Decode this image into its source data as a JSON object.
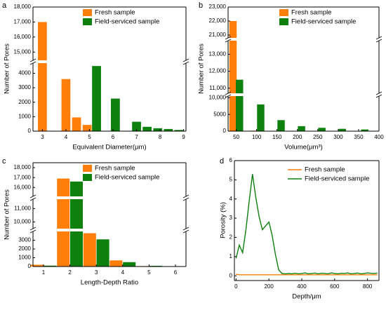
{
  "chart_data": [
    {
      "type": "bar",
      "panel": "a",
      "xlabel": "Equivalent Diameter(μm)",
      "ylabel": "Number of Pores",
      "xlim": [
        2.6,
        9.1
      ],
      "xticks": [
        3,
        4,
        5,
        6,
        7,
        8,
        9
      ],
      "ysegments": [
        [
          0,
          4700
        ],
        [
          14450,
          18000
        ]
      ],
      "yticks": [
        0,
        1000,
        2000,
        3000,
        4000,
        {
          "value": 15000,
          "label": "15,000"
        },
        {
          "value": 16000,
          "label": "16,000"
        },
        {
          "value": 17000,
          "label": "17,000"
        },
        {
          "value": 18000,
          "label": "18,000"
        }
      ],
      "legend": "upper right",
      "series": [
        {
          "name": "Fresh sample",
          "color": "#ff7f0a",
          "x": [
            3,
            4,
            4.45,
            4.9
          ],
          "values": [
            17000,
            3600,
            950,
            430
          ]
        },
        {
          "name": "Field-serviced sample",
          "color": "#0e800e",
          "x": [
            5.3,
            6.1,
            7,
            7.45,
            7.9,
            8.35,
            8.8
          ],
          "values": [
            4500,
            2250,
            650,
            300,
            200,
            150,
            80
          ]
        }
      ]
    },
    {
      "type": "bar",
      "panel": "b",
      "xlabel": "Volume(μm³)",
      "ylabel": "Number of Pores",
      "xlim": [
        30,
        400
      ],
      "xticks": [
        50,
        100,
        150,
        200,
        250,
        300,
        350,
        400
      ],
      "ysegments": [
        [
          0,
          10500
        ],
        [
          10700,
          13800
        ],
        [
          20800,
          23000
        ]
      ],
      "yticks": [
        0,
        5000,
        {
          "value": 10000,
          "label": "10,000"
        },
        {
          "value": 11000,
          "label": "11,000"
        },
        {
          "value": 12000,
          "label": "12,000"
        },
        {
          "value": 13000,
          "label": "13,000"
        },
        {
          "value": 21000,
          "label": "21,000"
        },
        {
          "value": 22000,
          "label": "22,000"
        },
        {
          "value": 23000,
          "label": "23,000"
        }
      ],
      "legend": "upper right",
      "series": [
        {
          "name": "Fresh sample",
          "color": "#ff7f0a",
          "x": [
            42,
            95
          ],
          "values": [
            22000,
            150
          ]
        },
        {
          "name": "Field-serviced sample",
          "color": "#0e800e",
          "x": [
            58,
            110,
            160,
            210,
            260,
            310,
            365
          ],
          "values": [
            11500,
            8000,
            3300,
            1500,
            1000,
            700,
            500
          ]
        }
      ]
    },
    {
      "type": "bar",
      "panel": "c",
      "xlabel": "Length-Depth Ratio",
      "ylabel": "Number of Pores",
      "xlim": [
        0.6,
        6.4
      ],
      "xticks": [
        1,
        2,
        3,
        4,
        5,
        6
      ],
      "ysegments": [
        [
          0,
          4000
        ],
        [
          9500,
          11700
        ],
        [
          15100,
          18500
        ]
      ],
      "yticks": [
        0,
        1000,
        2000,
        3000,
        {
          "value": 10000,
          "label": "10,000"
        },
        {
          "value": 11000,
          "label": "11,000"
        },
        {
          "value": 16000,
          "label": "16,000"
        },
        {
          "value": 17000,
          "label": "17,000"
        },
        {
          "value": 18000,
          "label": "18,000"
        }
      ],
      "legend": "upper right",
      "series": [
        {
          "name": "Fresh sample",
          "color": "#ff7f0a",
          "x": [
            0.75,
            1.75,
            2.75,
            3.75,
            4.75
          ],
          "values": [
            200,
            16900,
            3800,
            700,
            50
          ]
        },
        {
          "name": "Field-serviced sample",
          "color": "#0e800e",
          "x": [
            1.25,
            2.25,
            3.25,
            4.25,
            5.25
          ],
          "values": [
            100,
            16600,
            3100,
            500,
            80
          ]
        }
      ]
    },
    {
      "type": "line",
      "panel": "d",
      "xlabel": "Depth/μm",
      "ylabel": "Porosity (%)",
      "xlim": [
        -10,
        870
      ],
      "xticks": [
        0,
        200,
        400,
        600,
        800
      ],
      "ylim": [
        -0.25,
        6
      ],
      "yticks": [
        0,
        1,
        2,
        3,
        4,
        5,
        6
      ],
      "legend": "upper right",
      "x": [
        0,
        20,
        40,
        60,
        80,
        100,
        120,
        140,
        160,
        180,
        200,
        220,
        240,
        260,
        280,
        300,
        320,
        340,
        360,
        380,
        400,
        420,
        440,
        460,
        480,
        500,
        520,
        540,
        560,
        580,
        600,
        620,
        640,
        660,
        680,
        700,
        720,
        740,
        760,
        780,
        800,
        820,
        840,
        860
      ],
      "series": [
        {
          "name": "Fresh sample",
          "color": "#ff7f0a",
          "values": [
            0.08,
            0.05,
            0.05,
            0.05,
            0.05,
            0.05,
            0.05,
            0.05,
            0.05,
            0.05,
            0.05,
            0.05,
            0.05,
            0.05,
            0.05,
            0.05,
            0.05,
            0.05,
            0.05,
            0.05,
            0.05,
            0.05,
            0.05,
            0.05,
            0.05,
            0.05,
            0.05,
            0.05,
            0.05,
            0.05,
            0.05,
            0.05,
            0.05,
            0.05,
            0.05,
            0.05,
            0.05,
            0.05,
            0.05,
            0.05,
            0.05,
            0.05,
            0.05,
            0.05
          ]
        },
        {
          "name": "Field-serviced sample",
          "color": "#0e800e",
          "values": [
            0.9,
            1.6,
            1.2,
            2.4,
            3.9,
            5.3,
            4.1,
            3.1,
            2.4,
            2.6,
            2.8,
            2.1,
            1.1,
            0.3,
            0.12,
            0.1,
            0.12,
            0.1,
            0.13,
            0.1,
            0.12,
            0.15,
            0.1,
            0.12,
            0.14,
            0.1,
            0.13,
            0.12,
            0.1,
            0.15,
            0.12,
            0.1,
            0.13,
            0.12,
            0.15,
            0.1,
            0.12,
            0.14,
            0.1,
            0.12,
            0.15,
            0.13,
            0.12,
            0.14
          ]
        }
      ]
    }
  ]
}
